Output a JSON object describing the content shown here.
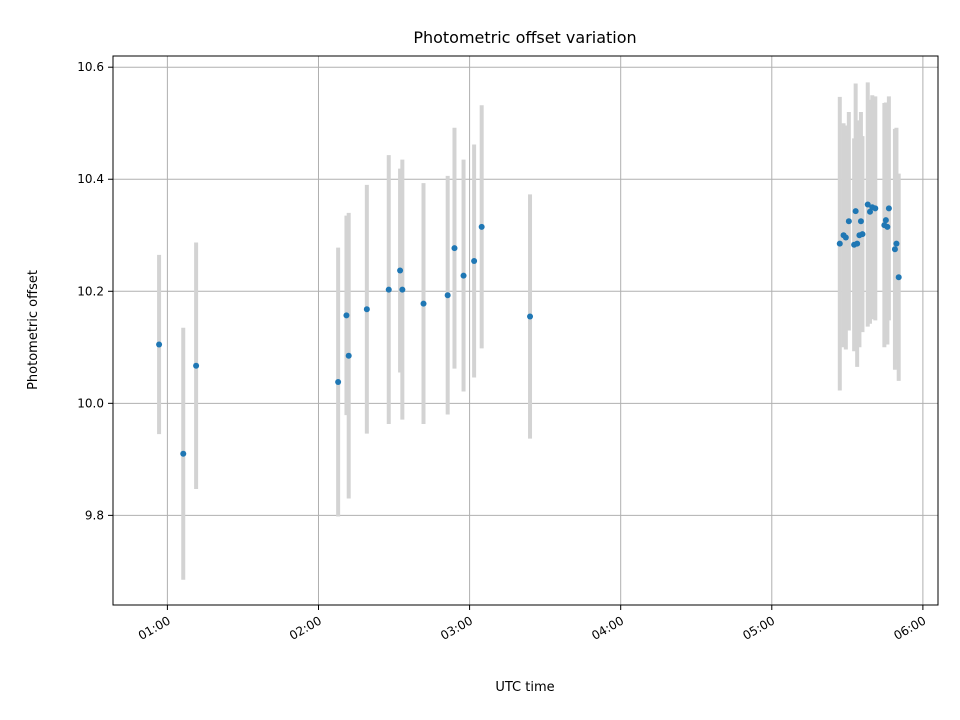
{
  "chart_data": {
    "type": "scatter",
    "title": "Photometric offset variation",
    "xlabel": "UTC time",
    "ylabel": "Photometric offset",
    "x_unit": "UTC hours",
    "xlim": [
      0.64,
      6.1
    ],
    "ylim": [
      9.64,
      10.62
    ],
    "x_ticks": [
      {
        "value": 1.0,
        "label": "01:00"
      },
      {
        "value": 2.0,
        "label": "02:00"
      },
      {
        "value": 3.0,
        "label": "03:00"
      },
      {
        "value": 4.0,
        "label": "04:00"
      },
      {
        "value": 5.0,
        "label": "05:00"
      },
      {
        "value": 6.0,
        "label": "06:00"
      }
    ],
    "y_ticks": [
      {
        "value": 9.8,
        "label": "9.8"
      },
      {
        "value": 10.0,
        "label": "10.0"
      },
      {
        "value": 10.2,
        "label": "10.2"
      },
      {
        "value": 10.4,
        "label": "10.4"
      },
      {
        "value": 10.6,
        "label": "10.6"
      }
    ],
    "grid": true,
    "colors": {
      "point": "#1f77b4",
      "errorbar": "#d3d3d3",
      "grid": "#b0b0b0"
    },
    "series": [
      {
        "points": [
          {
            "t": "00:56",
            "x": 0.945,
            "y": 10.105,
            "err": 0.16
          },
          {
            "t": "01:06",
            "x": 1.105,
            "y": 9.91,
            "err": 0.225
          },
          {
            "t": "01:12",
            "x": 1.19,
            "y": 10.067,
            "err": 0.22
          },
          {
            "t": "02:08",
            "x": 2.13,
            "y": 10.038,
            "err": 0.24
          },
          {
            "t": "02:11",
            "x": 2.185,
            "y": 10.157,
            "err": 0.178
          },
          {
            "t": "02:12",
            "x": 2.2,
            "y": 10.085,
            "err": 0.255
          },
          {
            "t": "02:19",
            "x": 2.32,
            "y": 10.168,
            "err": 0.222
          },
          {
            "t": "02:28",
            "x": 2.465,
            "y": 10.203,
            "err": 0.24
          },
          {
            "t": "02:32",
            "x": 2.54,
            "y": 10.237,
            "err": 0.182
          },
          {
            "t": "02:33",
            "x": 2.555,
            "y": 10.203,
            "err": 0.232
          },
          {
            "t": "02:42",
            "x": 2.695,
            "y": 10.178,
            "err": 0.215
          },
          {
            "t": "02:51",
            "x": 2.855,
            "y": 10.193,
            "err": 0.213
          },
          {
            "t": "02:54",
            "x": 2.9,
            "y": 10.277,
            "err": 0.215
          },
          {
            "t": "02:57",
            "x": 2.96,
            "y": 10.228,
            "err": 0.207
          },
          {
            "t": "03:02",
            "x": 3.03,
            "y": 10.254,
            "err": 0.208
          },
          {
            "t": "03:05",
            "x": 3.08,
            "y": 10.315,
            "err": 0.217
          },
          {
            "t": "03:24",
            "x": 3.4,
            "y": 10.155,
            "err": 0.218
          },
          {
            "t": "05:27",
            "x": 5.45,
            "y": 10.285,
            "err": 0.262
          },
          {
            "t": "05:28",
            "x": 5.475,
            "y": 10.3,
            "err": 0.2
          },
          {
            "t": "05:29",
            "x": 5.49,
            "y": 10.296,
            "err": 0.2
          },
          {
            "t": "05:30",
            "x": 5.51,
            "y": 10.325,
            "err": 0.195
          },
          {
            "t": "05:33",
            "x": 5.545,
            "y": 10.283,
            "err": 0.19
          },
          {
            "t": "05:33",
            "x": 5.555,
            "y": 10.343,
            "err": 0.228
          },
          {
            "t": "05:34",
            "x": 5.565,
            "y": 10.285,
            "err": 0.22
          },
          {
            "t": "05:35",
            "x": 5.58,
            "y": 10.3,
            "err": 0.2
          },
          {
            "t": "05:35",
            "x": 5.59,
            "y": 10.325,
            "err": 0.195
          },
          {
            "t": "05:36",
            "x": 5.6,
            "y": 10.302,
            "err": 0.175
          },
          {
            "t": "05:38",
            "x": 5.635,
            "y": 10.355,
            "err": 0.218
          },
          {
            "t": "05:39",
            "x": 5.65,
            "y": 10.342,
            "err": 0.2
          },
          {
            "t": "05:40",
            "x": 5.665,
            "y": 10.35,
            "err": 0.2
          },
          {
            "t": "05:41",
            "x": 5.685,
            "y": 10.348,
            "err": 0.2
          },
          {
            "t": "05:45",
            "x": 5.745,
            "y": 10.318,
            "err": 0.218
          },
          {
            "t": "05:45",
            "x": 5.755,
            "y": 10.327,
            "err": 0.21
          },
          {
            "t": "05:46",
            "x": 5.765,
            "y": 10.315,
            "err": 0.21
          },
          {
            "t": "05:47",
            "x": 5.775,
            "y": 10.348,
            "err": 0.2
          },
          {
            "t": "05:49",
            "x": 5.815,
            "y": 10.275,
            "err": 0.215
          },
          {
            "t": "05:50",
            "x": 5.825,
            "y": 10.285,
            "err": 0.207
          },
          {
            "t": "05:50",
            "x": 5.84,
            "y": 10.225,
            "err": 0.185
          }
        ]
      }
    ]
  }
}
